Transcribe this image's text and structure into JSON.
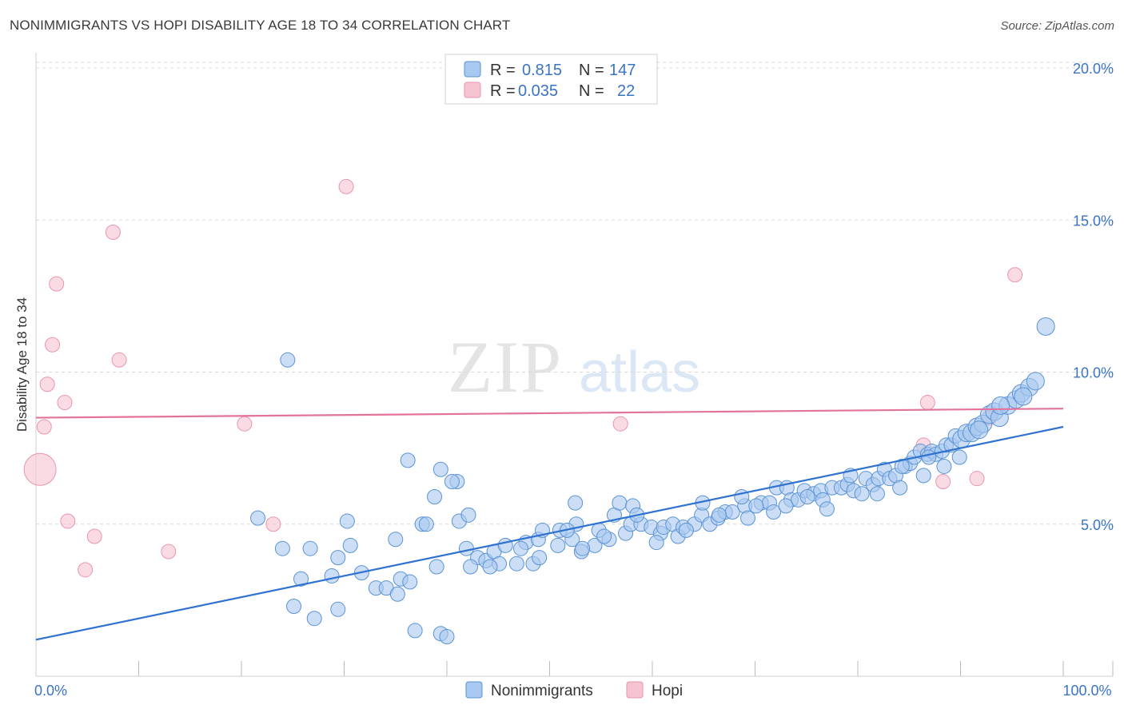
{
  "title": "NONIMMIGRANTS VS HOPI DISABILITY AGE 18 TO 34 CORRELATION CHART",
  "source": "Source: ZipAtlas.com",
  "watermark": {
    "zip": "ZIP",
    "atlas": "atlas"
  },
  "colors": {
    "blue_fill": "#a9c8ef",
    "blue_stroke": "#5b93d6",
    "blue_line": "#2f72cf",
    "pink_fill": "#f6c3d0",
    "pink_stroke": "#e896ad",
    "pink_line": "#e2739a",
    "label_blue": "#3a74c4",
    "grid": "#d8d8d8"
  },
  "stats_legend": [
    {
      "r_label": "R =",
      "r_value": "0.815",
      "n_label": "N =",
      "n_value": "147",
      "series": "blue"
    },
    {
      "r_label": "R =",
      "r_value": "0.035",
      "n_label": "N =",
      "n_value": "22",
      "series": "pink"
    }
  ],
  "chart_data": {
    "type": "scatter",
    "xlabel": "",
    "ylabel": "Disability Age 18 to 34",
    "xlim": [
      0,
      100
    ],
    "ylim": [
      0,
      20.5
    ],
    "x_tick_labels": [
      {
        "value": 0,
        "label": "0.0%"
      },
      {
        "value": 100,
        "label": "100.0%"
      }
    ],
    "x_minor_ticks": [
      0,
      10,
      20,
      30,
      40,
      50,
      60,
      70,
      80,
      90,
      100
    ],
    "y_ticks": [
      {
        "value": 5,
        "label": "5.0%"
      },
      {
        "value": 10,
        "label": "10.0%"
      },
      {
        "value": 15,
        "label": "15.0%"
      },
      {
        "value": 20,
        "label": "20.0%"
      }
    ],
    "legend": [
      "Nonimmigrants",
      "Hopi"
    ],
    "series": [
      {
        "name": "Nonimmigrants",
        "color": "blue",
        "trendline": {
          "x": [
            0,
            100
          ],
          "y": [
            1.2,
            8.2
          ]
        },
        "points": [
          [
            21.6,
            5.2
          ],
          [
            24.0,
            4.2
          ],
          [
            25.8,
            3.2
          ],
          [
            26.7,
            4.2
          ],
          [
            25.1,
            2.3
          ],
          [
            27.1,
            1.9
          ],
          [
            24.5,
            10.4
          ],
          [
            28.8,
            3.3
          ],
          [
            29.4,
            3.9
          ],
          [
            29.4,
            2.2
          ],
          [
            30.3,
            5.1
          ],
          [
            30.6,
            4.3
          ],
          [
            31.7,
            3.4
          ],
          [
            33.1,
            2.9
          ],
          [
            34.1,
            2.9
          ],
          [
            35.2,
            2.7
          ],
          [
            35.5,
            3.2
          ],
          [
            36.4,
            3.1
          ],
          [
            36.2,
            7.1
          ],
          [
            36.9,
            1.5
          ],
          [
            37.6,
            5.0
          ],
          [
            38.0,
            5.0
          ],
          [
            39.4,
            1.4
          ],
          [
            39.0,
            3.6
          ],
          [
            38.8,
            5.9
          ],
          [
            39.4,
            6.8
          ],
          [
            40.0,
            1.3
          ],
          [
            41.0,
            6.4
          ],
          [
            41.2,
            5.1
          ],
          [
            42.1,
            5.3
          ],
          [
            35.0,
            4.5
          ],
          [
            41.9,
            4.2
          ],
          [
            43.0,
            3.9
          ],
          [
            43.8,
            3.8
          ],
          [
            44.6,
            4.1
          ],
          [
            45.1,
            3.7
          ],
          [
            45.7,
            4.3
          ],
          [
            46.8,
            3.7
          ],
          [
            47.7,
            4.4
          ],
          [
            48.4,
            3.7
          ],
          [
            48.9,
            4.5
          ],
          [
            49.3,
            4.8
          ],
          [
            50.8,
            4.3
          ],
          [
            51.0,
            4.8
          ],
          [
            52.2,
            4.5
          ],
          [
            52.6,
            5.0
          ],
          [
            53.1,
            4.1
          ],
          [
            54.4,
            4.3
          ],
          [
            52.5,
            5.7
          ],
          [
            53.2,
            4.2
          ],
          [
            54.8,
            4.8
          ],
          [
            55.8,
            4.5
          ],
          [
            56.3,
            5.3
          ],
          [
            56.8,
            5.7
          ],
          [
            57.4,
            4.7
          ],
          [
            57.9,
            5.0
          ],
          [
            58.1,
            5.6
          ],
          [
            58.9,
            5.0
          ],
          [
            59.9,
            4.9
          ],
          [
            60.8,
            4.7
          ],
          [
            61.1,
            4.9
          ],
          [
            62.0,
            5.0
          ],
          [
            62.5,
            4.6
          ],
          [
            63.0,
            4.9
          ],
          [
            64.1,
            5.0
          ],
          [
            64.8,
            5.3
          ],
          [
            64.9,
            5.7
          ],
          [
            65.6,
            5.0
          ],
          [
            66.4,
            5.2
          ],
          [
            67.1,
            5.4
          ],
          [
            67.8,
            5.4
          ],
          [
            69.0,
            5.6
          ],
          [
            68.7,
            5.9
          ],
          [
            69.3,
            5.2
          ],
          [
            70.6,
            5.7
          ],
          [
            71.4,
            5.7
          ],
          [
            71.8,
            5.4
          ],
          [
            72.1,
            6.2
          ],
          [
            73.1,
            6.2
          ],
          [
            73.5,
            5.8
          ],
          [
            74.2,
            5.8
          ],
          [
            74.8,
            6.1
          ],
          [
            75.7,
            6.0
          ],
          [
            76.4,
            6.1
          ],
          [
            76.6,
            5.8
          ],
          [
            77.5,
            6.2
          ],
          [
            78.4,
            6.2
          ],
          [
            79.0,
            6.3
          ],
          [
            79.6,
            6.1
          ],
          [
            80.4,
            6.0
          ],
          [
            80.8,
            6.5
          ],
          [
            81.5,
            6.3
          ],
          [
            82.0,
            6.5
          ],
          [
            82.6,
            6.8
          ],
          [
            83.1,
            6.5
          ],
          [
            83.7,
            6.6
          ],
          [
            84.6,
            6.9
          ],
          [
            85.1,
            7.0
          ],
          [
            85.5,
            7.2
          ],
          [
            86.1,
            7.4
          ],
          [
            86.8,
            7.3
          ],
          [
            87.2,
            7.4
          ],
          [
            87.6,
            7.3
          ],
          [
            88.2,
            7.4
          ],
          [
            88.6,
            7.6
          ],
          [
            89.1,
            7.6
          ],
          [
            89.5,
            7.9
          ],
          [
            90.1,
            7.8
          ],
          [
            90.6,
            8.0
          ],
          [
            91.1,
            8.0
          ],
          [
            91.6,
            8.2
          ],
          [
            92.2,
            8.3
          ],
          [
            92.8,
            8.6
          ],
          [
            93.3,
            8.7
          ],
          [
            93.8,
            8.5
          ],
          [
            94.6,
            8.9
          ],
          [
            95.4,
            9.1
          ],
          [
            95.9,
            9.3
          ],
          [
            96.7,
            9.5
          ],
          [
            97.3,
            9.7
          ],
          [
            98.3,
            11.5
          ],
          [
            88.4,
            6.9
          ],
          [
            84.1,
            6.2
          ],
          [
            86.4,
            6.6
          ],
          [
            81.9,
            6.0
          ],
          [
            79.3,
            6.6
          ],
          [
            77.0,
            5.5
          ],
          [
            75.1,
            5.9
          ],
          [
            73.0,
            5.6
          ],
          [
            70.1,
            5.6
          ],
          [
            66.5,
            5.3
          ],
          [
            63.3,
            4.8
          ],
          [
            60.4,
            4.4
          ],
          [
            58.5,
            5.3
          ],
          [
            55.3,
            4.6
          ],
          [
            51.7,
            4.8
          ],
          [
            49.0,
            3.9
          ],
          [
            47.2,
            4.2
          ],
          [
            44.2,
            3.6
          ],
          [
            42.3,
            3.6
          ],
          [
            40.5,
            6.4
          ],
          [
            84.3,
            6.9
          ],
          [
            86.9,
            7.2
          ],
          [
            89.9,
            7.2
          ],
          [
            91.8,
            8.1
          ],
          [
            93.9,
            8.9
          ],
          [
            96.1,
            9.2
          ]
        ]
      },
      {
        "name": "Hopi",
        "color": "pink",
        "trendline": {
          "x": [
            0,
            100
          ],
          "y": [
            8.5,
            8.8
          ]
        },
        "points": [
          [
            0.4,
            6.8
          ],
          [
            0.8,
            8.2
          ],
          [
            1.1,
            9.6
          ],
          [
            1.6,
            10.9
          ],
          [
            2.0,
            12.9
          ],
          [
            2.8,
            9.0
          ],
          [
            3.1,
            5.1
          ],
          [
            4.8,
            3.5
          ],
          [
            5.7,
            4.6
          ],
          [
            7.5,
            14.6
          ],
          [
            8.1,
            10.4
          ],
          [
            12.9,
            4.1
          ],
          [
            20.3,
            8.3
          ],
          [
            23.1,
            5.0
          ],
          [
            30.2,
            16.1
          ],
          [
            56.9,
            8.3
          ],
          [
            86.4,
            7.6
          ],
          [
            86.8,
            9.0
          ],
          [
            88.3,
            6.4
          ],
          [
            91.6,
            6.5
          ],
          [
            95.3,
            13.2
          ],
          [
            92.8,
            8.5
          ]
        ]
      }
    ]
  }
}
